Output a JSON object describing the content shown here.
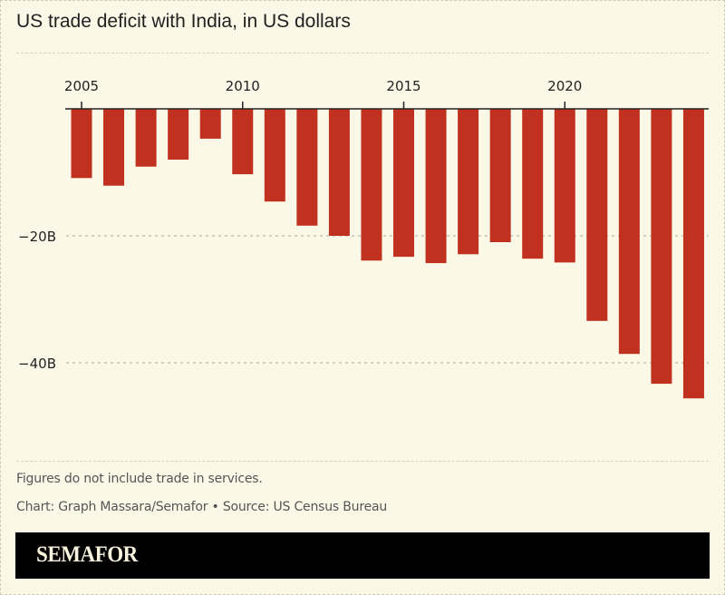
{
  "title": "US trade deficit with India, in US dollars",
  "colors": {
    "background": "#fbf8e7",
    "bar": "#c0311f",
    "axis": "#222222",
    "grid": "#bdb9a6",
    "brand_bar": "#000000",
    "brand_text": "#f8f3de"
  },
  "chart_data": {
    "type": "bar",
    "title": "US trade deficit with India, in US dollars",
    "xlabel": "",
    "ylabel": "",
    "categories": [
      "2005",
      "2006",
      "2007",
      "2008",
      "2009",
      "2010",
      "2011",
      "2012",
      "2013",
      "2014",
      "2015",
      "2016",
      "2017",
      "2018",
      "2019",
      "2020",
      "2021",
      "2022",
      "2023",
      "2024"
    ],
    "values": [
      -10.9,
      -12.1,
      -9.1,
      -8.0,
      -4.7,
      -10.3,
      -14.6,
      -18.4,
      -20.0,
      -23.9,
      -23.3,
      -24.3,
      -22.9,
      -21.0,
      -23.6,
      -24.2,
      -33.4,
      -38.6,
      -43.3,
      -45.6
    ],
    "unit": "billion USD",
    "ylim": [
      -50,
      0
    ],
    "yticks": [
      {
        "value": -20,
        "label": "−20B"
      },
      {
        "value": -40,
        "label": "−40B"
      }
    ],
    "xticks": [
      {
        "value": "2005",
        "label": "2005"
      },
      {
        "value": "2010",
        "label": "2010"
      },
      {
        "value": "2015",
        "label": "2015"
      },
      {
        "value": "2020",
        "label": "2020"
      }
    ],
    "x_axis_position": "top",
    "grid": true,
    "legend": "none"
  },
  "footer": {
    "note": "Figures do not include trade in services.",
    "credit": "Chart: Graph Massara/Semafor • Source: US Census Bureau"
  },
  "brand": {
    "logo": "SEMAFOR"
  }
}
